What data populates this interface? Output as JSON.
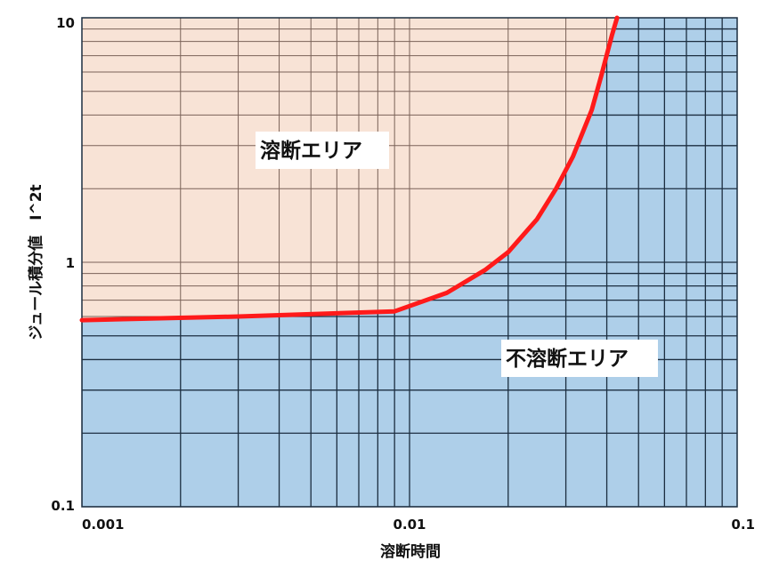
{
  "chart_data": {
    "type": "line",
    "title": "",
    "xlabel": "溶断時間",
    "ylabel": "ジュール積分値　I^2t",
    "x_scale": "log",
    "y_scale": "log",
    "xlim": [
      0.001,
      0.1
    ],
    "ylim": [
      0.1,
      10
    ],
    "x_ticks": [
      "0.001",
      "0.01",
      "0.1"
    ],
    "y_ticks": [
      "0.1",
      "1",
      "10"
    ],
    "grid": true,
    "series": [
      {
        "color": "#ff1a1a",
        "points": [
          [
            0.001,
            0.58
          ],
          [
            0.003,
            0.6
          ],
          [
            0.009,
            0.63
          ],
          [
            0.013,
            0.75
          ],
          [
            0.017,
            0.93
          ],
          [
            0.02,
            1.1
          ],
          [
            0.0245,
            1.5
          ],
          [
            0.028,
            2.0
          ],
          [
            0.0315,
            2.7
          ],
          [
            0.036,
            4.2
          ],
          [
            0.0385,
            5.8
          ],
          [
            0.0415,
            8.5
          ],
          [
            0.043,
            10.0
          ]
        ]
      }
    ],
    "regions": [
      {
        "label": "溶断エリア",
        "position": "above-curve",
        "color": "#f8e3d6"
      },
      {
        "label": "不溶断エリア",
        "position": "below-curve",
        "color": "#aecfe9"
      }
    ],
    "colors": {
      "fuse_area": "#f8e3d6",
      "fuse_grid": "#7a6258",
      "nonfuse_area": "#aecfe9",
      "nonfuse_grid": "#1c2e40",
      "curve": "#ff1a1a"
    }
  }
}
